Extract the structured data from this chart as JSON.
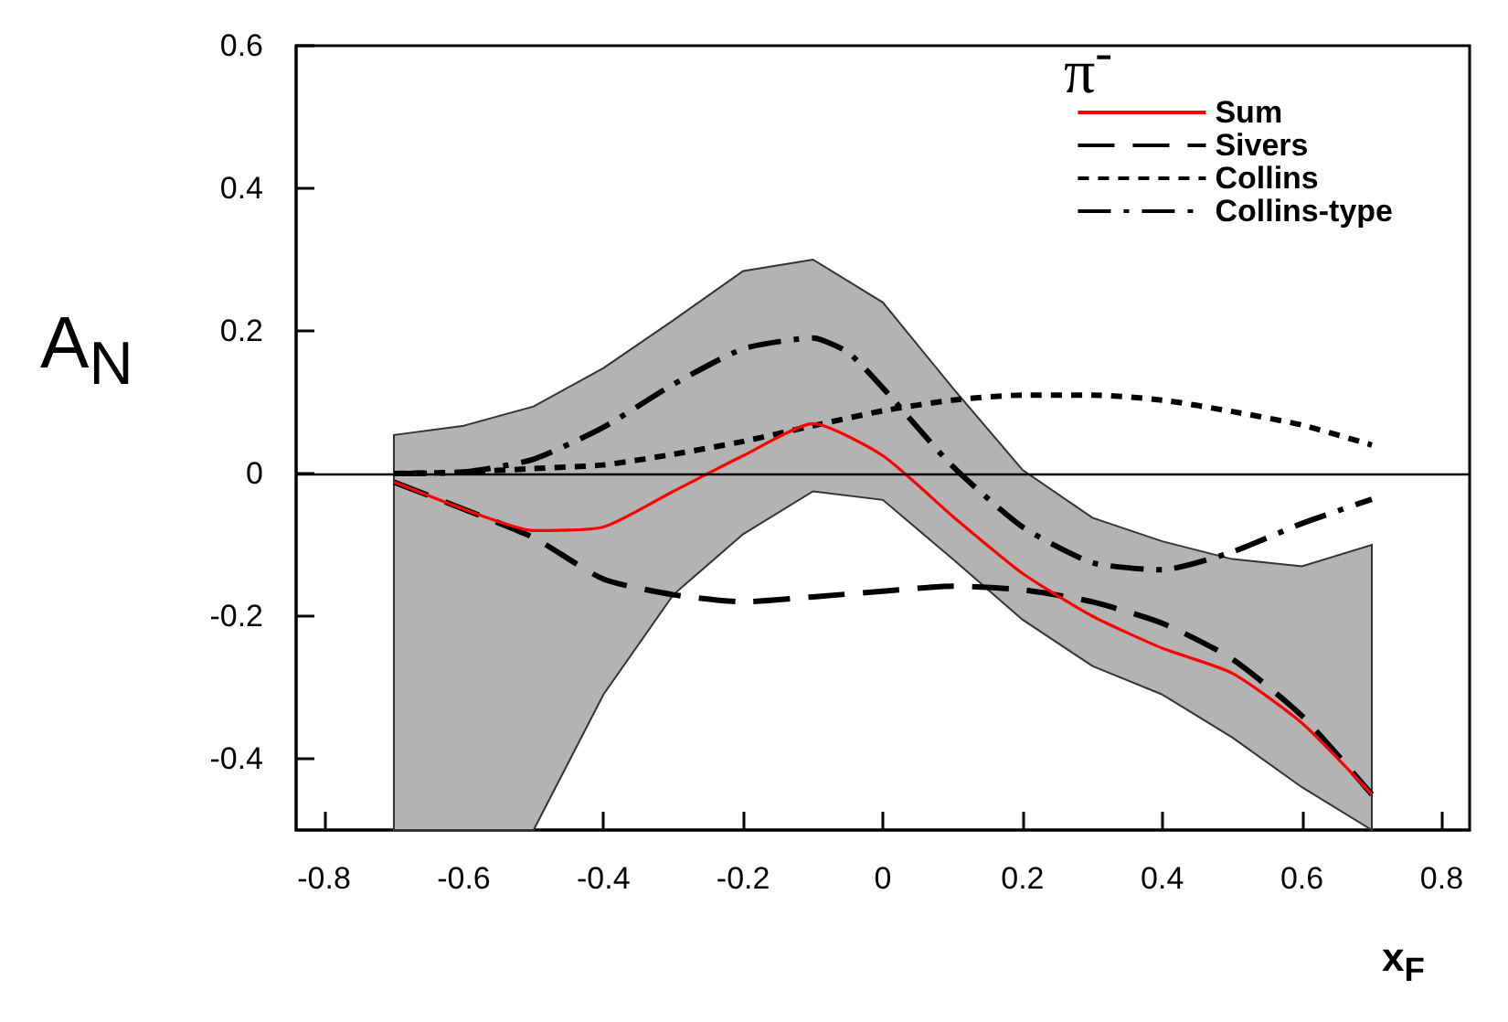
{
  "chart_data": {
    "type": "line",
    "xlabel": "x$_{F}$",
    "ylabel": "A$_{N}$",
    "legend_title": "π$^{-}$",
    "xlim": [
      -0.84,
      0.84
    ],
    "xticks": [
      -0.8,
      -0.6,
      -0.4,
      -0.2,
      0,
      0.2,
      0.4,
      0.6,
      0.8
    ],
    "ylim": [
      -0.5,
      0.6
    ],
    "yticks": [
      -0.4,
      -0.2,
      0,
      0.2,
      0.4,
      0.6
    ],
    "grid": false,
    "legend": "top right",
    "marker": "none",
    "ref_lines": [
      {
        "axis": "y",
        "value": 0,
        "color": "#000000"
      }
    ],
    "series": [
      {
        "name": "Sum",
        "color": "#ff0000",
        "line_style": "solid",
        "x": [
          -0.7,
          -0.6,
          -0.5,
          -0.4,
          -0.3,
          -0.2,
          -0.1,
          0,
          0.1,
          0.2,
          0.3,
          0.4,
          0.5,
          0.6,
          0.7
        ],
        "values": [
          -0.012,
          -0.05,
          -0.08,
          -0.075,
          -0.025,
          0.025,
          0.07,
          0.025,
          -0.06,
          -0.14,
          -0.2,
          -0.245,
          -0.28,
          -0.35,
          -0.45
        ],
        "lower": [
          -0.5,
          -0.5,
          -0.5,
          -0.31,
          -0.17,
          -0.085,
          -0.025,
          -0.037,
          -0.12,
          -0.205,
          -0.27,
          -0.31,
          -0.37,
          -0.44,
          -0.5
        ],
        "upper": [
          0.054,
          0.067,
          0.094,
          0.148,
          0.215,
          0.284,
          0.3,
          0.24,
          0.12,
          0.005,
          -0.062,
          -0.095,
          -0.12,
          -0.13,
          -0.1
        ]
      },
      {
        "name": "Sivers",
        "color": "#000000",
        "line_style": "dashed",
        "x": [
          -0.7,
          -0.6,
          -0.5,
          -0.4,
          -0.3,
          -0.2,
          -0.1,
          0,
          0.1,
          0.2,
          0.3,
          0.4,
          0.5,
          0.6,
          0.7
        ],
        "values": [
          -0.012,
          -0.05,
          -0.09,
          -0.148,
          -0.17,
          -0.18,
          -0.173,
          -0.165,
          -0.158,
          -0.163,
          -0.18,
          -0.21,
          -0.26,
          -0.34,
          -0.45
        ]
      },
      {
        "name": "Collins",
        "color": "#000000",
        "line_style": "dotted",
        "x": [
          -0.7,
          -0.6,
          -0.5,
          -0.4,
          -0.3,
          -0.2,
          -0.1,
          0,
          0.1,
          0.2,
          0.3,
          0.4,
          0.5,
          0.6,
          0.7
        ],
        "values": [
          0,
          0.002,
          0.007,
          0.012,
          0.027,
          0.045,
          0.067,
          0.088,
          0.103,
          0.11,
          0.11,
          0.103,
          0.087,
          0.068,
          0.04
        ]
      },
      {
        "name": "Collins-type",
        "color": "#000000",
        "line_style": "dashdot",
        "x": [
          -0.7,
          -0.6,
          -0.5,
          -0.4,
          -0.3,
          -0.2,
          -0.1,
          -0.05,
          0,
          0.1,
          0.2,
          0.3,
          0.4,
          0.5,
          0.6,
          0.7
        ],
        "values": [
          0,
          0.002,
          0.02,
          0.065,
          0.125,
          0.175,
          0.19,
          0.17,
          0.12,
          0.01,
          -0.075,
          -0.125,
          -0.135,
          -0.11,
          -0.07,
          -0.036
        ]
      }
    ]
  }
}
